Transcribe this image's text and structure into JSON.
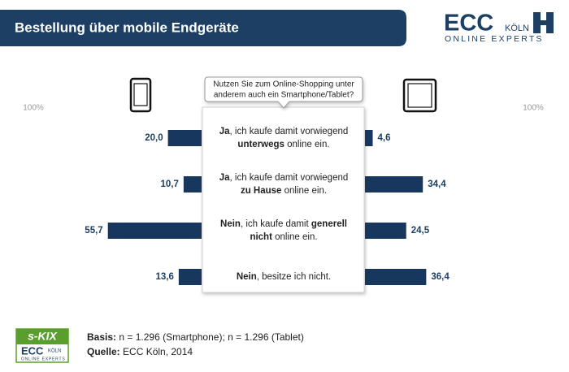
{
  "header": {
    "title": "Bestellung über mobile Endgeräte"
  },
  "logo": {
    "name": "ECC",
    "sub": "KÖLN",
    "tagline": "ONLINE EXPERTS"
  },
  "chart_data": {
    "type": "butterfly",
    "question": [
      "Nutzen Sie zum Online-Shopping unter",
      "anderem auch ein Smartphone/Tablet?"
    ],
    "categories": [
      [
        [
          {
            "text": "Ja",
            "bold": true
          },
          {
            "text": ", ich kaufe damit vorwiegend"
          }
        ],
        [
          {
            "text": "unterwegs",
            "bold": true
          },
          {
            "text": " online ein."
          }
        ]
      ],
      [
        [
          {
            "text": "Ja",
            "bold": true
          },
          {
            "text": ", ich kaufe damit vorwiegend"
          }
        ],
        [
          {
            "text": "zu Hause",
            "bold": true
          },
          {
            "text": " online ein."
          }
        ]
      ],
      [
        [
          {
            "text": "Nein",
            "bold": true
          },
          {
            "text": ", ich kaufe damit "
          },
          {
            "text": "generell",
            "bold": true
          }
        ],
        [
          {
            "text": "nicht",
            "bold": true
          },
          {
            "text": " online ein."
          }
        ]
      ],
      [
        [
          {
            "text": "Nein",
            "bold": true
          },
          {
            "text": ", besitze ich nicht."
          }
        ]
      ]
    ],
    "series": [
      {
        "side": "left",
        "color": "#17375e",
        "values": [
          20.0,
          10.7,
          55.7,
          13.6
        ],
        "value_labels": [
          "20,0",
          "10,7",
          "55,7",
          "13,6"
        ]
      },
      {
        "side": "right",
        "color": "#17375e",
        "values": [
          4.6,
          34.4,
          24.5,
          36.4
        ],
        "value_labels": [
          "4,6",
          "34,4",
          "24,5",
          "36,4"
        ]
      }
    ],
    "xlim": [
      0,
      100
    ],
    "xticks": [
      {
        "value": 100,
        "label": "100%"
      }
    ]
  },
  "footer": {
    "badge": {
      "title": "s-KIX",
      "name": "ECC",
      "sub": "KÖLN",
      "tagline": "ONLINE EXPERTS"
    },
    "lines": [
      [
        {
          "text": "Basis:",
          "bold": true
        },
        {
          "text": " n = 1.296 (Smartphone); n = 1.296 (Tablet)"
        }
      ],
      [
        {
          "text": "Quelle:",
          "bold": true
        },
        {
          "text": " ECC Köln, 2014"
        }
      ]
    ]
  }
}
